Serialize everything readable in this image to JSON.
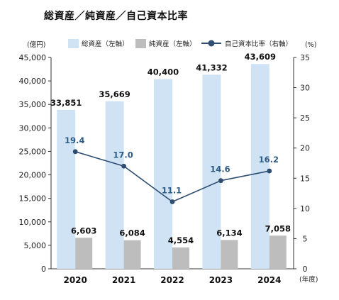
{
  "title": "総資産／純資産／自己資本比率",
  "chart_data": {
    "type": "bar",
    "categories": [
      "2020",
      "2021",
      "2022",
      "2023",
      "2024"
    ],
    "series": [
      {
        "name": "総資産（左軸）",
        "type": "bar",
        "axis": "left",
        "color": "#cfe3f4",
        "values": [
          33851,
          35669,
          40400,
          41332,
          43609
        ],
        "labels": [
          "33,851",
          "35,669",
          "40,400",
          "41,332",
          "43,609"
        ]
      },
      {
        "name": "純資産（左軸）",
        "type": "bar",
        "axis": "left",
        "color": "#bdbdbd",
        "values": [
          6603,
          6084,
          4554,
          6134,
          7058
        ],
        "labels": [
          "6,603",
          "6,084",
          "4,554",
          "6,134",
          "7,058"
        ]
      },
      {
        "name": "自己資本比率（右軸）",
        "type": "line",
        "axis": "right",
        "color": "#2e4d70",
        "values": [
          19.4,
          17.0,
          11.1,
          14.6,
          16.2
        ],
        "labels": [
          "19.4",
          "17.0",
          "11.1",
          "14.6",
          "16.2"
        ]
      }
    ],
    "left_unit": "(億円)",
    "right_unit": "(%)",
    "x_unit": "(年度)",
    "ylim_left": [
      0,
      45000
    ],
    "ylim_right": [
      0,
      35
    ],
    "left_ticks": [
      "0",
      "5,000",
      "10,000",
      "15,000",
      "20,000",
      "25,000",
      "30,000",
      "35,000",
      "40,000",
      "45,000"
    ],
    "right_ticks": [
      "0",
      "5",
      "10",
      "15",
      "20",
      "25",
      "30",
      "35"
    ],
    "grid": false,
    "legend_position": "top"
  }
}
